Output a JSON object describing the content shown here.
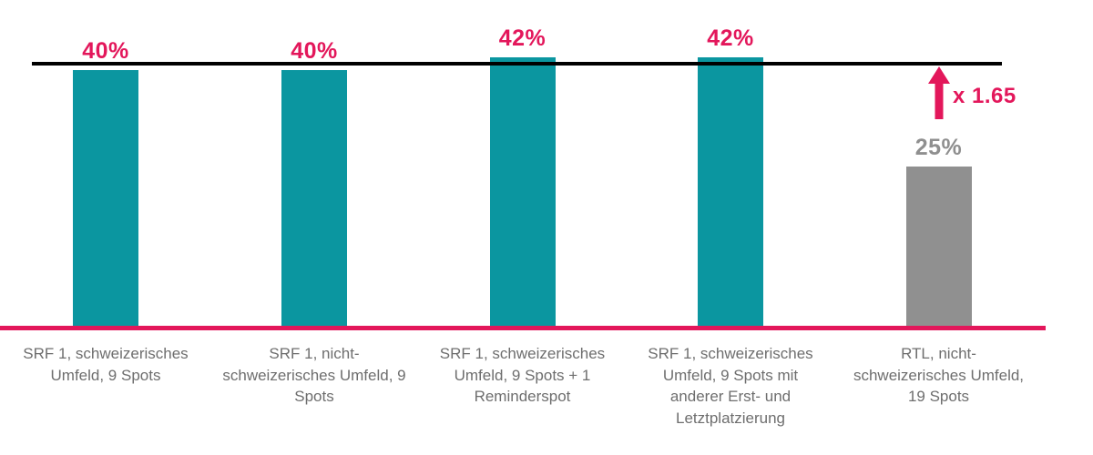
{
  "chart_data": {
    "type": "bar",
    "categories": [
      "SRF 1, schweizerisches Umfeld, 9 Spots",
      "SRF 1, nicht-schweizerisches Umfeld, 9 Spots",
      "SRF 1, schweizerisches Umfeld, 9 Spots + 1 Reminderspot",
      "SRF 1, schweizerisches Umfeld, 9 Spots mit anderer Erst- und Letztplatzierung",
      "RTL, nicht-schweizerisches Umfeld, 19 Spots"
    ],
    "category_lines": [
      [
        "SRF 1, schweizerisches",
        "Umfeld, 9 Spots"
      ],
      [
        "SRF 1, nicht-",
        "schweizerisches Umfeld, 9",
        "Spots"
      ],
      [
        "SRF 1, schweizerisches",
        "Umfeld, 9 Spots + 1",
        "Reminderspot"
      ],
      [
        "SRF 1, schweizerisches",
        "Umfeld, 9 Spots mit",
        "anderer Erst- und",
        "Letztplatzierung"
      ],
      [
        "RTL, nicht-",
        "schweizerisches Umfeld,",
        "19 Spots"
      ]
    ],
    "values": [
      40,
      40,
      42,
      42,
      25
    ],
    "value_labels": [
      "40%",
      "40%",
      "42%",
      "42%",
      "25%"
    ],
    "bar_colors": [
      "#0B96A0",
      "#0B96A0",
      "#0B96A0",
      "#0B96A0",
      "#909090"
    ],
    "value_label_colors": [
      "#E3175B",
      "#E3175B",
      "#E3175B",
      "#E3175B",
      "#8F8F8F"
    ],
    "title": "",
    "xlabel": "",
    "ylabel": "",
    "ylim": [
      0,
      45
    ],
    "grid": false,
    "legend": false,
    "benchmark_line": {
      "color": "#000000",
      "at_percent": 41
    },
    "baseline_color": "#E3175B",
    "annotation": {
      "label": "x 1.65",
      "icon": "arrow-up-icon",
      "color": "#E3175B"
    }
  }
}
